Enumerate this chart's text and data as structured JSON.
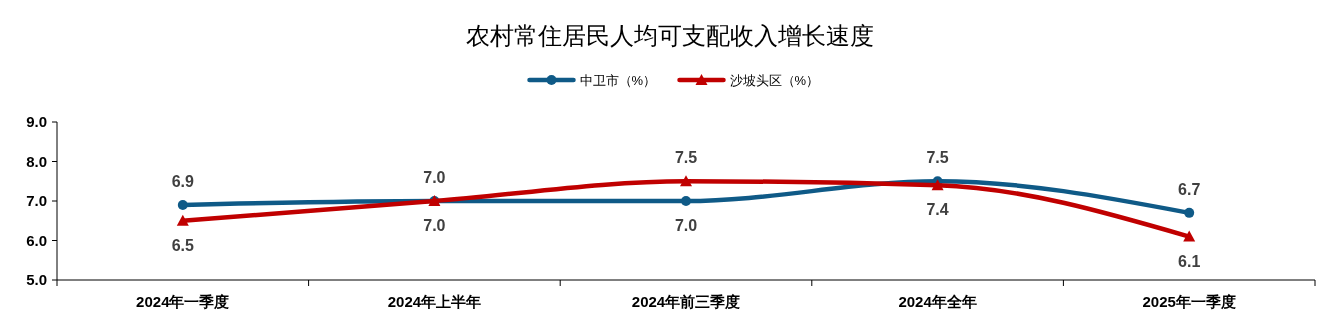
{
  "chart_data": {
    "type": "line",
    "title": "农村常住居民人均可支配收入增长速度",
    "categories": [
      "2024年一季度",
      "2024年上半年",
      "2024年前三季度",
      "2024年全年",
      "2025年一季度"
    ],
    "series": [
      {
        "name": "中卫市（%）",
        "color": "#0f5a87",
        "marker": "circle",
        "values": [
          6.9,
          7.0,
          7.0,
          7.5,
          6.7
        ],
        "value_labels": [
          "6.9",
          "7.0",
          "7.0",
          "7.5",
          "6.7"
        ]
      },
      {
        "name": "沙坡头区（%）",
        "color": "#c00000",
        "marker": "triangle",
        "values": [
          6.5,
          7.0,
          7.5,
          7.4,
          6.1
        ],
        "value_labels": [
          "6.5",
          "7.0",
          "7.5",
          "7.4",
          "6.1"
        ]
      }
    ],
    "ylim": [
      5,
      9
    ],
    "yticks": [
      {
        "value": 5,
        "label": "5.0"
      },
      {
        "value": 6,
        "label": "6.0"
      },
      {
        "value": 7,
        "label": "7.0"
      },
      {
        "value": 8,
        "label": "8.0"
      },
      {
        "value": 9,
        "label": "9.0"
      }
    ],
    "legend": "top",
    "grid": false
  }
}
